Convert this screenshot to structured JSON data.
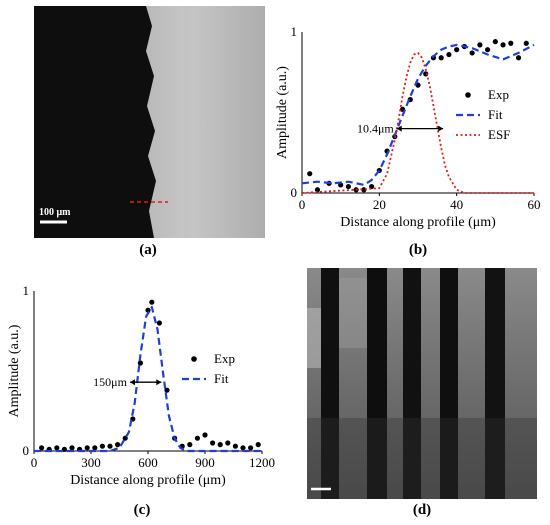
{
  "panels": {
    "a": {
      "tag": "(a)",
      "scale_bar": "100 μm"
    },
    "b": {
      "tag": "(b)"
    },
    "c": {
      "tag": "(c)"
    },
    "d": {
      "tag": "(d)"
    }
  },
  "chart_data": [
    {
      "panel": "b",
      "type": "line",
      "xlabel": "Distance along profile (μm)",
      "ylabel": "Amplitude (a.u.)",
      "xlim": [
        0,
        60
      ],
      "ylim": [
        0,
        1
      ],
      "xticks": [
        "0",
        "20",
        "40",
        "60"
      ],
      "yticks": [
        "0",
        "1"
      ],
      "legend": [
        "Exp",
        "Fit",
        "ESF"
      ],
      "legend_position": "right",
      "annotation": "10.4μm",
      "colors": {
        "exp": "#000000",
        "fit": "#1f3fd6",
        "esf": "#e31a1c"
      },
      "series": [
        {
          "name": "Exp",
          "style": "markers",
          "x": [
            2,
            4,
            7,
            10,
            12,
            14,
            16,
            18,
            20,
            22,
            24,
            26,
            28,
            30,
            32,
            34,
            36,
            38,
            40,
            42,
            44,
            46,
            48,
            50,
            52,
            54,
            56,
            58
          ],
          "y": [
            0.12,
            0.02,
            0.06,
            0.05,
            0.04,
            0.02,
            0.02,
            0.04,
            0.14,
            0.26,
            0.35,
            0.52,
            0.58,
            0.67,
            0.74,
            0.84,
            0.84,
            0.86,
            0.89,
            0.91,
            0.87,
            0.92,
            0.89,
            0.94,
            0.92,
            0.93,
            0.84,
            0.93
          ]
        },
        {
          "name": "Fit",
          "style": "dashed",
          "x": [
            0,
            4,
            8,
            12,
            16,
            18,
            20,
            22,
            24,
            26,
            28,
            30,
            32,
            34,
            36,
            38,
            40,
            44,
            48,
            52,
            56,
            60
          ],
          "y": [
            0.06,
            0.07,
            0.06,
            0.07,
            0.05,
            0.08,
            0.14,
            0.24,
            0.36,
            0.48,
            0.6,
            0.71,
            0.79,
            0.85,
            0.89,
            0.91,
            0.92,
            0.9,
            0.86,
            0.83,
            0.87,
            0.92
          ]
        },
        {
          "name": "ESF",
          "style": "dotted",
          "x": [
            0,
            20,
            22,
            24,
            25,
            26,
            27,
            28,
            29,
            30,
            31,
            32,
            33,
            34,
            35,
            36,
            37,
            38,
            40,
            42,
            60
          ],
          "y": [
            0,
            0.03,
            0.12,
            0.33,
            0.46,
            0.6,
            0.72,
            0.81,
            0.86,
            0.87,
            0.84,
            0.77,
            0.67,
            0.54,
            0.41,
            0.28,
            0.17,
            0.1,
            0.02,
            0,
            0
          ]
        }
      ]
    },
    {
      "panel": "c",
      "type": "line",
      "xlabel": "Distance along profile (μm)",
      "ylabel": "Amplitude (a.u.)",
      "xlim": [
        0,
        1200
      ],
      "ylim": [
        0,
        1
      ],
      "xticks": [
        "0",
        "300",
        "600",
        "900",
        "1200"
      ],
      "yticks": [
        "0",
        "1"
      ],
      "legend": [
        "Exp",
        "Fit"
      ],
      "legend_position": "right",
      "annotation": "150μm",
      "colors": {
        "exp": "#000000",
        "fit": "#1f3fd6"
      },
      "series": [
        {
          "name": "Exp",
          "style": "markers",
          "x": [
            40,
            80,
            120,
            160,
            200,
            240,
            280,
            320,
            360,
            400,
            440,
            480,
            520,
            560,
            600,
            620,
            660,
            700,
            740,
            780,
            820,
            860,
            900,
            940,
            980,
            1020,
            1060,
            1100,
            1140,
            1180
          ],
          "y": [
            0.02,
            0.01,
            0.02,
            0.01,
            0.02,
            0.01,
            0.02,
            0.02,
            0.03,
            0.03,
            0.04,
            0.08,
            0.2,
            0.55,
            0.88,
            0.93,
            0.8,
            0.38,
            0.08,
            0.03,
            0.04,
            0.08,
            0.1,
            0.05,
            0.04,
            0.05,
            0.03,
            0.02,
            0.02,
            0.04
          ]
        },
        {
          "name": "Fit",
          "style": "dashed",
          "x": [
            0,
            400,
            450,
            500,
            530,
            560,
            590,
            620,
            650,
            680,
            710,
            740,
            770,
            800,
            1200
          ],
          "y": [
            0,
            0,
            0.02,
            0.12,
            0.3,
            0.6,
            0.84,
            0.9,
            0.76,
            0.48,
            0.22,
            0.08,
            0.02,
            0,
            0
          ]
        }
      ]
    }
  ]
}
